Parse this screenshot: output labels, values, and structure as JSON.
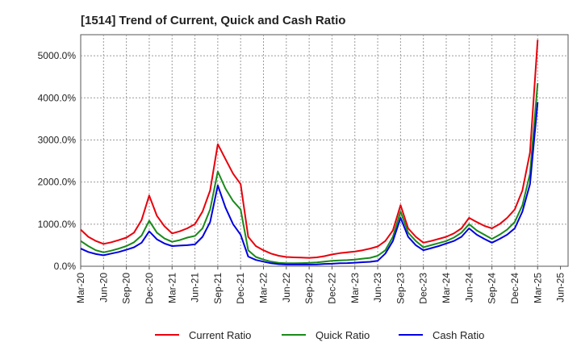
{
  "chart_data": {
    "type": "line",
    "title": "[1514]  Trend of Current, Quick and Cash Ratio",
    "xlabel": "",
    "ylabel": "",
    "ylim": [
      0,
      5500
    ],
    "y_ticks": [
      "0.0%",
      "1000.0%",
      "2000.0%",
      "3000.0%",
      "4000.0%",
      "5000.0%"
    ],
    "y_tick_values": [
      0,
      1000,
      2000,
      3000,
      4000,
      5000
    ],
    "x_ticks": [
      "Mar-20",
      "Jun-20",
      "Sep-20",
      "Dec-20",
      "Mar-21",
      "Jun-21",
      "Sep-21",
      "Dec-21",
      "Mar-22",
      "Jun-22",
      "Sep-22",
      "Dec-22",
      "Mar-23",
      "Jun-23",
      "Sep-23",
      "Dec-23",
      "Mar-24",
      "Jun-24",
      "Sep-24",
      "Dec-24",
      "Mar-25",
      "Jun-25"
    ],
    "x_month_count": 64,
    "grid": true,
    "legend_position": "bottom",
    "x": [
      "Mar-20",
      "Apr-20",
      "May-20",
      "Jun-20",
      "Jul-20",
      "Aug-20",
      "Sep-20",
      "Oct-20",
      "Nov-20",
      "Dec-20",
      "Jan-21",
      "Feb-21",
      "Mar-21",
      "Apr-21",
      "May-21",
      "Jun-21",
      "Jul-21",
      "Aug-21",
      "Sep-21",
      "Oct-21",
      "Nov-21",
      "Dec-21",
      "Jan-22",
      "Feb-22",
      "Mar-22",
      "Apr-22",
      "May-22",
      "Jun-22",
      "Jul-22",
      "Aug-22",
      "Sep-22",
      "Oct-22",
      "Nov-22",
      "Dec-22",
      "Jan-23",
      "Feb-23",
      "Mar-23",
      "Apr-23",
      "May-23",
      "Jun-23",
      "Jul-23",
      "Aug-23",
      "Sep-23",
      "Oct-23",
      "Nov-23",
      "Dec-23",
      "Jan-24",
      "Feb-24",
      "Mar-24",
      "Apr-24",
      "May-24",
      "Jun-24",
      "Jul-24",
      "Aug-24",
      "Sep-24",
      "Oct-24",
      "Nov-24",
      "Dec-24",
      "Jan-25",
      "Feb-25",
      "Mar-25"
    ],
    "series": [
      {
        "name": "Current Ratio",
        "color": "#e8000b",
        "values": [
          870,
          700,
          600,
          530,
          570,
          620,
          680,
          800,
          1100,
          1680,
          1200,
          950,
          780,
          830,
          900,
          1000,
          1300,
          1800,
          2900,
          2550,
          2200,
          1950,
          700,
          480,
          380,
          300,
          250,
          220,
          210,
          205,
          200,
          210,
          240,
          280,
          310,
          330,
          350,
          380,
          420,
          470,
          600,
          850,
          1450,
          900,
          700,
          560,
          600,
          650,
          700,
          780,
          900,
          1150,
          1050,
          960,
          900,
          1000,
          1150,
          1350,
          1800,
          2700,
          5380
        ]
      },
      {
        "name": "Quick Ratio",
        "color": "#1a8a1a",
        "values": [
          600,
          480,
          380,
          330,
          370,
          420,
          480,
          570,
          730,
          1080,
          800,
          660,
          580,
          620,
          680,
          720,
          900,
          1350,
          2250,
          1850,
          1550,
          1350,
          380,
          220,
          160,
          110,
          80,
          70,
          70,
          75,
          80,
          90,
          110,
          130,
          140,
          145,
          160,
          180,
          200,
          250,
          380,
          700,
          1300,
          800,
          600,
          450,
          500,
          550,
          600,
          680,
          800,
          1000,
          850,
          750,
          650,
          750,
          870,
          1050,
          1450,
          2200,
          4350
        ]
      },
      {
        "name": "Cash Ratio",
        "color": "#0000e0",
        "values": [
          420,
          340,
          290,
          260,
          300,
          340,
          390,
          450,
          560,
          830,
          640,
          540,
          480,
          490,
          500,
          520,
          700,
          1050,
          1920,
          1400,
          1000,
          750,
          230,
          150,
          110,
          70,
          50,
          40,
          40,
          40,
          40,
          45,
          55,
          60,
          70,
          75,
          85,
          95,
          105,
          130,
          300,
          600,
          1150,
          700,
          500,
          380,
          430,
          480,
          540,
          600,
          700,
          900,
          750,
          650,
          560,
          650,
          750,
          900,
          1300,
          1950,
          3900
        ]
      }
    ]
  }
}
